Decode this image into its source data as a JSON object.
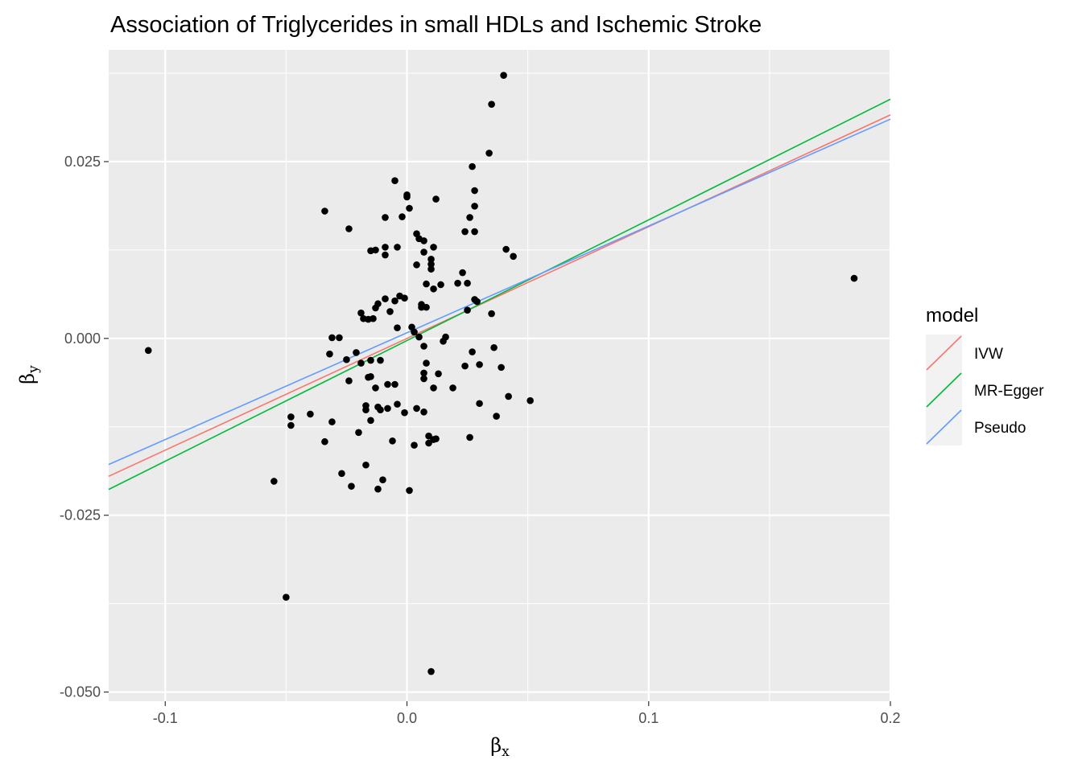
{
  "chart_data": {
    "type": "scatter",
    "title": "Association of Triglycerides in small HDLs and Ischemic Stroke",
    "xlabel": "β",
    "xlabel_sub": "x",
    "ylabel": "β",
    "ylabel_sub": "y",
    "xlim": [
      -0.1234,
      0.2
    ],
    "ylim": [
      -0.0513,
      0.0408
    ],
    "x_ticks": [
      -0.1,
      0.0,
      0.1,
      0.2
    ],
    "x_tick_labels": [
      "-0.1",
      "0.0",
      "0.1",
      "0.2"
    ],
    "y_ticks": [
      -0.05,
      -0.025,
      0.0,
      0.025
    ],
    "y_tick_labels": [
      "-0.050",
      "-0.025",
      "0.000",
      "0.025"
    ],
    "grid": true,
    "background": "#ebebeb",
    "legend": {
      "title": "model",
      "position": "right",
      "entries": [
        "IVW",
        "MR-Egger",
        "Pseudo"
      ]
    },
    "lines": [
      {
        "name": "IVW",
        "color": "#F8766D",
        "slope": 0.158,
        "intercept": 0.0
      },
      {
        "name": "MR-Egger",
        "color": "#00BA38",
        "slope": 0.1706,
        "intercept": -0.0003
      },
      {
        "name": "Pseudo",
        "color": "#619CFF",
        "slope": 0.151,
        "intercept": 0.0008
      }
    ],
    "points": [
      [
        -0.107,
        -0.0017
      ],
      [
        0.185,
        0.0085
      ],
      [
        -0.05,
        -0.0366
      ],
      [
        0.01,
        -0.0471
      ],
      [
        -0.055,
        -0.0202
      ],
      [
        -0.048,
        -0.0123
      ],
      [
        -0.048,
        -0.0111
      ],
      [
        -0.04,
        -0.0107
      ],
      [
        -0.034,
        -0.0146
      ],
      [
        -0.034,
        0.018
      ],
      [
        -0.032,
        -0.0022
      ],
      [
        -0.031,
        -0.0118
      ],
      [
        -0.031,
        0.0001
      ],
      [
        -0.028,
        0.0001
      ],
      [
        -0.027,
        -0.0191
      ],
      [
        -0.025,
        -0.003
      ],
      [
        -0.024,
        -0.006
      ],
      [
        -0.024,
        0.0155
      ],
      [
        -0.023,
        -0.0209
      ],
      [
        -0.021,
        -0.002
      ],
      [
        -0.02,
        -0.0133
      ],
      [
        -0.019,
        -0.0035
      ],
      [
        -0.019,
        0.0036
      ],
      [
        -0.018,
        0.0028
      ],
      [
        -0.017,
        -0.0095
      ],
      [
        -0.017,
        -0.0101
      ],
      [
        -0.017,
        -0.0179
      ],
      [
        -0.016,
        0.0027
      ],
      [
        -0.016,
        -0.0055
      ],
      [
        -0.015,
        -0.0054
      ],
      [
        -0.015,
        -0.0116
      ],
      [
        -0.015,
        -0.0031
      ],
      [
        -0.015,
        0.0124
      ],
      [
        -0.014,
        0.0028
      ],
      [
        -0.013,
        -0.007
      ],
      [
        -0.013,
        0.0043
      ],
      [
        -0.013,
        0.0125
      ],
      [
        -0.012,
        0.0049
      ],
      [
        -0.012,
        -0.0097
      ],
      [
        -0.012,
        -0.0213
      ],
      [
        -0.011,
        -0.0031
      ],
      [
        -0.011,
        -0.0101
      ],
      [
        -0.01,
        -0.02
      ],
      [
        -0.009,
        0.0056
      ],
      [
        -0.009,
        0.0118
      ],
      [
        -0.009,
        0.0129
      ],
      [
        -0.009,
        0.0171
      ],
      [
        -0.008,
        -0.0065
      ],
      [
        -0.008,
        -0.0099
      ],
      [
        -0.007,
        0.0038
      ],
      [
        -0.006,
        -0.0145
      ],
      [
        -0.005,
        -0.0065
      ],
      [
        -0.005,
        0.0053
      ],
      [
        -0.005,
        0.0223
      ],
      [
        -0.004,
        -0.0093
      ],
      [
        -0.004,
        0.0015
      ],
      [
        -0.004,
        0.0129
      ],
      [
        -0.003,
        0.006
      ],
      [
        -0.002,
        0.0172
      ],
      [
        -0.001,
        0.0057
      ],
      [
        -0.001,
        -0.0105
      ],
      [
        0.0,
        0.02
      ],
      [
        0.0,
        0.0203
      ],
      [
        0.001,
        0.0184
      ],
      [
        0.001,
        -0.0215
      ],
      [
        0.002,
        0.0016
      ],
      [
        0.003,
        -0.0151
      ],
      [
        0.003,
        0.0009
      ],
      [
        0.004,
        -0.0099
      ],
      [
        0.004,
        0.0104
      ],
      [
        0.004,
        0.0148
      ],
      [
        0.005,
        0.0002
      ],
      [
        0.005,
        0.0141
      ],
      [
        0.006,
        0.0048
      ],
      [
        0.006,
        0.0044
      ],
      [
        0.007,
        0.0122
      ],
      [
        0.007,
        -0.0057
      ],
      [
        0.007,
        -0.0049
      ],
      [
        0.007,
        0.0138
      ],
      [
        0.007,
        -0.0104
      ],
      [
        0.007,
        -0.0011
      ],
      [
        0.008,
        0.0077
      ],
      [
        0.008,
        0.0044
      ],
      [
        0.008,
        -0.0035
      ],
      [
        0.009,
        -0.0138
      ],
      [
        0.009,
        -0.0148
      ],
      [
        0.01,
        0.0105
      ],
      [
        0.01,
        0.0112
      ],
      [
        0.01,
        0.0098
      ],
      [
        0.011,
        0.0129
      ],
      [
        0.011,
        0.007
      ],
      [
        0.011,
        -0.0143
      ],
      [
        0.011,
        -0.007
      ],
      [
        0.012,
        0.0197
      ],
      [
        0.012,
        -0.0142
      ],
      [
        0.013,
        -0.005
      ],
      [
        0.014,
        0.0076
      ],
      [
        0.015,
        -0.0004
      ],
      [
        0.016,
        0.0002
      ],
      [
        0.019,
        -0.007
      ],
      [
        0.021,
        0.0078
      ],
      [
        0.023,
        0.0093
      ],
      [
        0.024,
        0.0151
      ],
      [
        0.024,
        -0.0039
      ],
      [
        0.025,
        0.0078
      ],
      [
        0.025,
        0.004
      ],
      [
        0.026,
        0.0171
      ],
      [
        0.026,
        -0.014
      ],
      [
        0.027,
        0.0243
      ],
      [
        0.027,
        -0.0019
      ],
      [
        0.028,
        0.0187
      ],
      [
        0.028,
        0.0055
      ],
      [
        0.028,
        0.0209
      ],
      [
        0.028,
        0.0151
      ],
      [
        0.029,
        0.0052
      ],
      [
        0.03,
        -0.0037
      ],
      [
        0.03,
        -0.0092
      ],
      [
        0.034,
        0.0262
      ],
      [
        0.035,
        0.0035
      ],
      [
        0.035,
        0.0331
      ],
      [
        0.036,
        -0.0013
      ],
      [
        0.037,
        -0.011
      ],
      [
        0.039,
        -0.0041
      ],
      [
        0.04,
        0.0372
      ],
      [
        0.041,
        0.0126
      ],
      [
        0.042,
        -0.0082
      ],
      [
        0.044,
        0.0116
      ],
      [
        0.051,
        -0.0088
      ]
    ]
  }
}
